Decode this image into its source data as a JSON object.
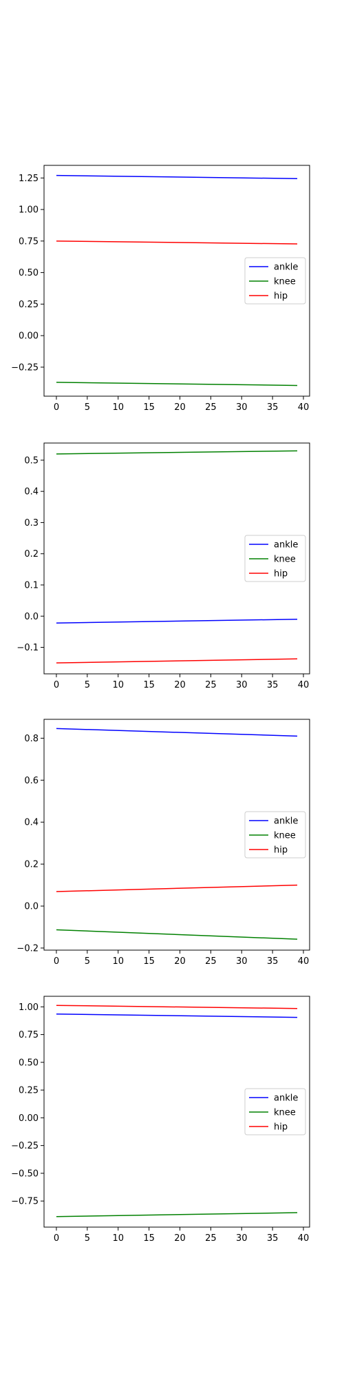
{
  "chart_data": [
    {
      "type": "line",
      "x": [
        0,
        39
      ],
      "xlim": [
        -2,
        41
      ],
      "ylim": [
        -0.48,
        1.35
      ],
      "xticks": [
        0,
        5,
        10,
        15,
        20,
        25,
        30,
        35,
        40
      ],
      "xtick_labels": [
        "0",
        "5",
        "10",
        "15",
        "20",
        "25",
        "30",
        "35",
        "40"
      ],
      "yticks": [
        -0.25,
        0.0,
        0.25,
        0.5,
        0.75,
        1.0,
        1.25
      ],
      "ytick_labels": [
        "−0.25",
        "0.00",
        "0.25",
        "0.50",
        "0.75",
        "1.00",
        "1.25"
      ],
      "legend_position": "center-right",
      "grid": false,
      "series": [
        {
          "name": "ankle",
          "color": "#0000ff",
          "values": [
            1.27,
            1.245
          ]
        },
        {
          "name": "knee",
          "color": "#008000",
          "values": [
            -0.37,
            -0.395
          ]
        },
        {
          "name": "hip",
          "color": "#ff0000",
          "values": [
            0.75,
            0.727
          ]
        }
      ]
    },
    {
      "type": "line",
      "x": [
        0,
        39
      ],
      "xlim": [
        -2,
        41
      ],
      "ylim": [
        -0.185,
        0.555
      ],
      "xticks": [
        0,
        5,
        10,
        15,
        20,
        25,
        30,
        35,
        40
      ],
      "xtick_labels": [
        "0",
        "5",
        "10",
        "15",
        "20",
        "25",
        "30",
        "35",
        "40"
      ],
      "yticks": [
        -0.1,
        0.0,
        0.1,
        0.2,
        0.3,
        0.4,
        0.5
      ],
      "ytick_labels": [
        "−0.1",
        "0.0",
        "0.1",
        "0.2",
        "0.3",
        "0.4",
        "0.5"
      ],
      "legend_position": "center-right",
      "grid": false,
      "series": [
        {
          "name": "ankle",
          "color": "#0000ff",
          "values": [
            -0.022,
            -0.01
          ]
        },
        {
          "name": "knee",
          "color": "#008000",
          "values": [
            0.52,
            0.53
          ]
        },
        {
          "name": "hip",
          "color": "#ff0000",
          "values": [
            -0.15,
            -0.137
          ]
        }
      ]
    },
    {
      "type": "line",
      "x": [
        0,
        39
      ],
      "xlim": [
        -2,
        41
      ],
      "ylim": [
        -0.21,
        0.89
      ],
      "xticks": [
        0,
        5,
        10,
        15,
        20,
        25,
        30,
        35,
        40
      ],
      "xtick_labels": [
        "0",
        "5",
        "10",
        "15",
        "20",
        "25",
        "30",
        "35",
        "40"
      ],
      "yticks": [
        -0.2,
        0.0,
        0.2,
        0.4,
        0.6,
        0.8
      ],
      "ytick_labels": [
        "−0.2",
        "0.0",
        "0.2",
        "0.4",
        "0.6",
        "0.8"
      ],
      "legend_position": "center-right",
      "grid": false,
      "series": [
        {
          "name": "ankle",
          "color": "#0000ff",
          "values": [
            0.846,
            0.81
          ]
        },
        {
          "name": "knee",
          "color": "#008000",
          "values": [
            -0.113,
            -0.158
          ]
        },
        {
          "name": "hip",
          "color": "#ff0000",
          "values": [
            0.069,
            0.1
          ]
        }
      ]
    },
    {
      "type": "line",
      "x": [
        0,
        39
      ],
      "xlim": [
        -2,
        41
      ],
      "ylim": [
        -0.985,
        1.095
      ],
      "xticks": [
        0,
        5,
        10,
        15,
        20,
        25,
        30,
        35,
        40
      ],
      "xtick_labels": [
        "0",
        "5",
        "10",
        "15",
        "20",
        "25",
        "30",
        "35",
        "40"
      ],
      "yticks": [
        -0.75,
        -0.5,
        -0.25,
        0.0,
        0.25,
        0.5,
        0.75,
        1.0
      ],
      "ytick_labels": [
        "−0.75",
        "−0.50",
        "−0.25",
        "0.00",
        "0.25",
        "0.50",
        "0.75",
        "1.00"
      ],
      "legend_position": "center-right",
      "grid": false,
      "series": [
        {
          "name": "ankle",
          "color": "#0000ff",
          "values": [
            0.935,
            0.905
          ]
        },
        {
          "name": "knee",
          "color": "#008000",
          "values": [
            -0.89,
            -0.855
          ]
        },
        {
          "name": "hip",
          "color": "#ff0000",
          "values": [
            1.013,
            0.985
          ]
        }
      ]
    }
  ]
}
